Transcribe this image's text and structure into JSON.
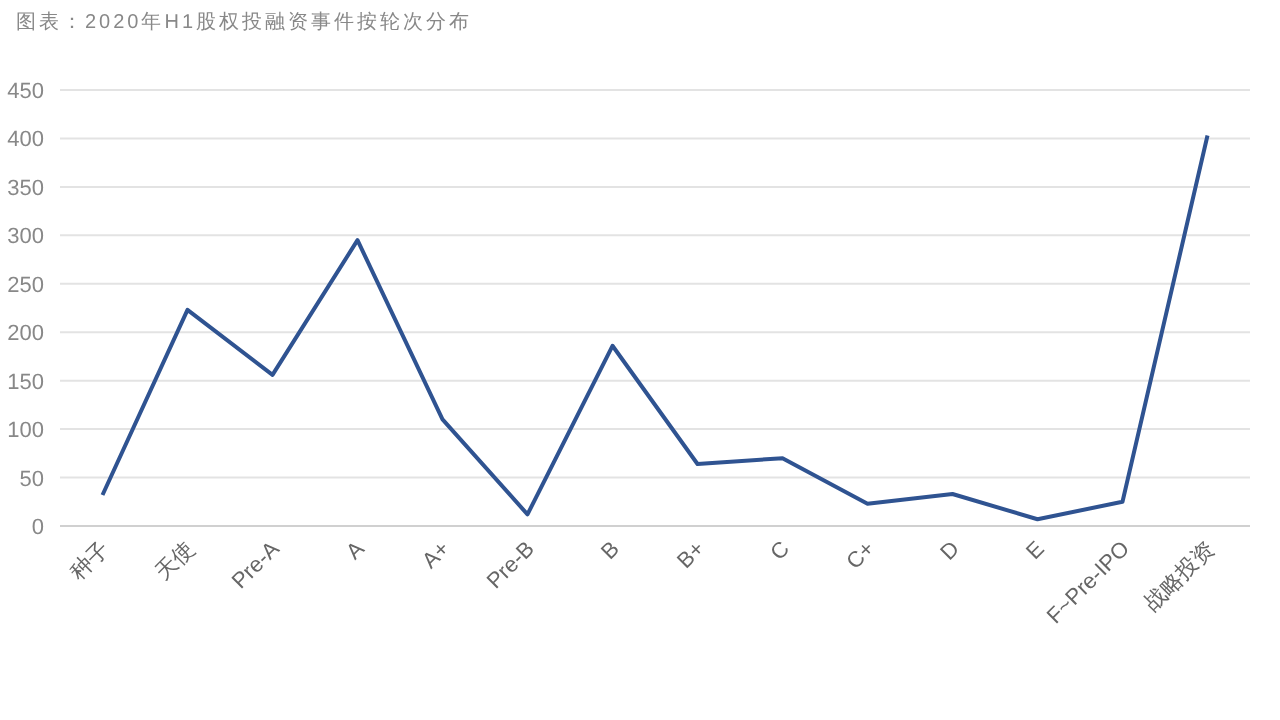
{
  "chart_data": {
    "type": "line",
    "title": "图表：2020年H1股权投融资事件按轮次分布",
    "categories": [
      "种子",
      "天使",
      "Pre-A",
      "A",
      "A+",
      "Pre-B",
      "B",
      "B+",
      "C",
      "C+",
      "D",
      "E",
      "F~Pre-IPO",
      "战略投资"
    ],
    "series": [
      {
        "color": "#2f5391",
        "values": [
          32,
          223,
          156,
          295,
          110,
          12,
          186,
          64,
          70,
          23,
          33,
          7,
          25,
          403
        ]
      }
    ],
    "ylim": [
      0,
      450
    ],
    "yticks": [
      0,
      50,
      100,
      150,
      200,
      250,
      300,
      350,
      400,
      450
    ],
    "grid": "y",
    "marker": "none",
    "line_style": "solid"
  }
}
